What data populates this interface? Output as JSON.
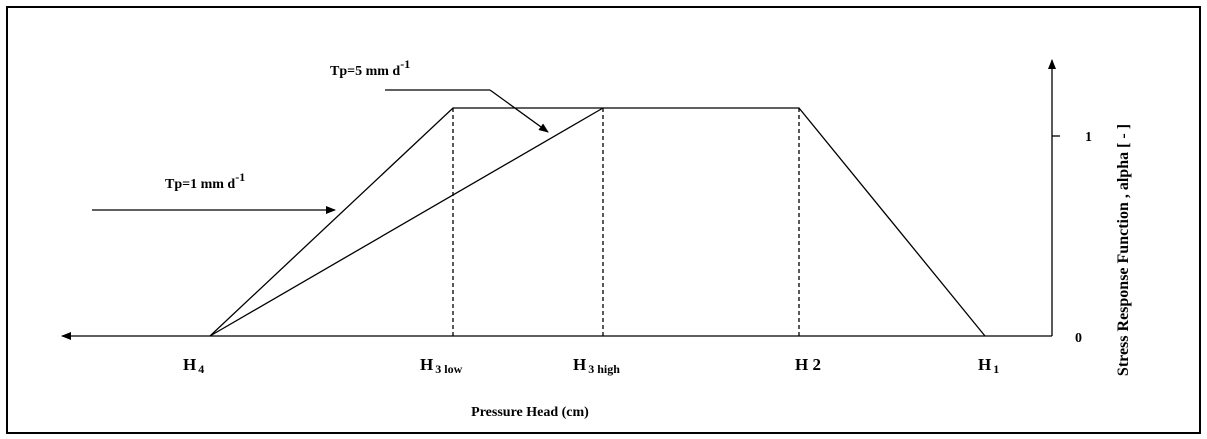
{
  "annotations": [
    {
      "text": "Tp=5 mm d",
      "sup": "-1"
    },
    {
      "text": "Tp=1 mm d",
      "sup": "-1"
    }
  ],
  "x_labels": [
    {
      "main": "H",
      "sub": "4"
    },
    {
      "main": "H",
      "sub": "3 low"
    },
    {
      "main": "H",
      "sub": "3 high"
    },
    {
      "main": "H 2"
    },
    {
      "main": "H",
      "sub": "1"
    }
  ],
  "x_axis_label": "Pressure Head (cm)",
  "y_axis_label": "Stress Response Function , alpha [ - ]",
  "y_labels": [
    "1",
    "0"
  ]
}
